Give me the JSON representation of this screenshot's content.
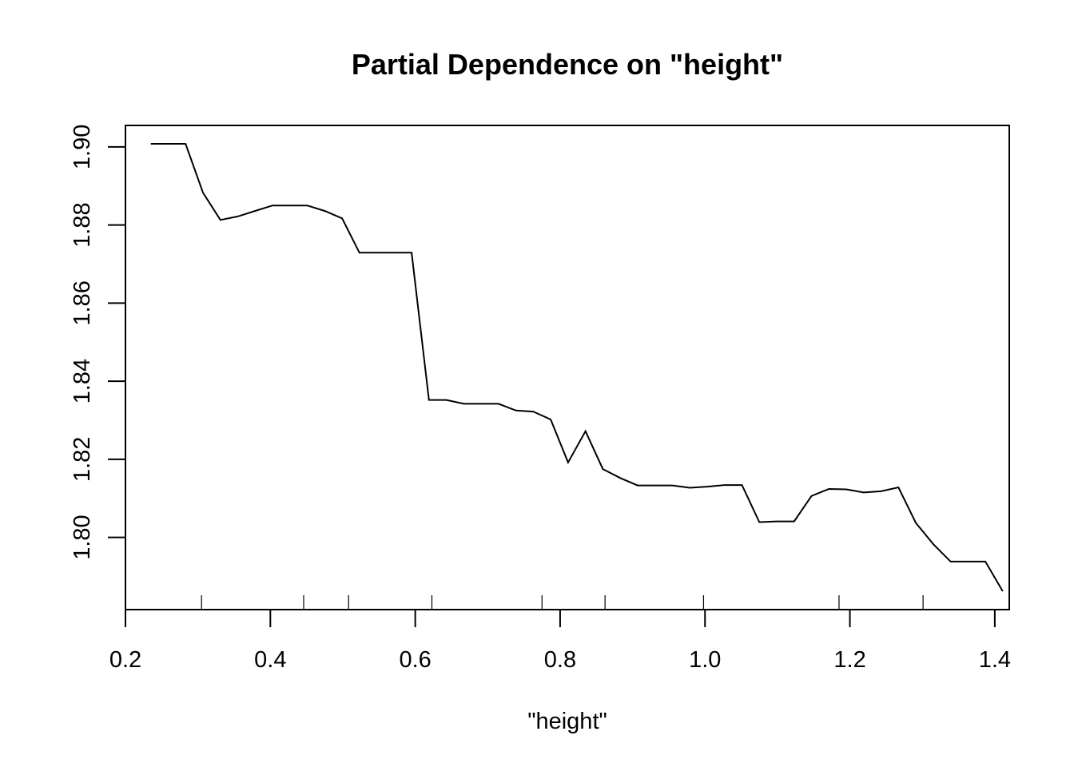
{
  "chart_data": {
    "type": "line",
    "title": "Partial Dependence on \"height\"",
    "xlabel": "\"height\"",
    "ylabel": "",
    "xlim": [
      0.2,
      1.42
    ],
    "ylim": [
      1.7815,
      1.9055
    ],
    "xticks": [
      "0.2",
      "0.4",
      "0.6",
      "0.8",
      "1.0",
      "1.2",
      "1.4"
    ],
    "yticks": [
      "1.80",
      "1.82",
      "1.84",
      "1.86",
      "1.88",
      "1.90"
    ],
    "grid": false,
    "rug": [
      0.305,
      0.446,
      0.508,
      0.623,
      0.775,
      0.862,
      0.998,
      1.185,
      1.301
    ],
    "series": [
      {
        "x": [
          0.235,
          0.259,
          0.283,
          0.307,
          0.331,
          0.355,
          0.379,
          0.403,
          0.427,
          0.451,
          0.475,
          0.499,
          0.523,
          0.547,
          0.571,
          0.595,
          0.619,
          0.643,
          0.667,
          0.691,
          0.715,
          0.739,
          0.763,
          0.787,
          0.811,
          0.835,
          0.859,
          0.883,
          0.907,
          0.931,
          0.955,
          0.979,
          1.003,
          1.027,
          1.051,
          1.075,
          1.099,
          1.123,
          1.147,
          1.171,
          1.195,
          1.219,
          1.243,
          1.267,
          1.291,
          1.315,
          1.339,
          1.363,
          1.387,
          1.411
        ],
        "values": [
          1.9008,
          1.9008,
          1.9008,
          1.8883,
          1.8813,
          1.8822,
          1.8836,
          1.885,
          1.885,
          1.885,
          1.8836,
          1.8817,
          1.8729,
          1.8729,
          1.8729,
          1.8729,
          1.8352,
          1.8352,
          1.8342,
          1.8342,
          1.8342,
          1.8325,
          1.8322,
          1.8302,
          1.8192,
          1.8272,
          1.8175,
          1.8152,
          1.8133,
          1.8133,
          1.8133,
          1.8127,
          1.813,
          1.8134,
          1.8134,
          1.8039,
          1.8041,
          1.8041,
          1.8106,
          1.8124,
          1.8123,
          1.8115,
          1.8118,
          1.8128,
          1.8037,
          1.7983,
          1.7938,
          1.7938,
          1.7938,
          1.7862
        ]
      }
    ]
  }
}
